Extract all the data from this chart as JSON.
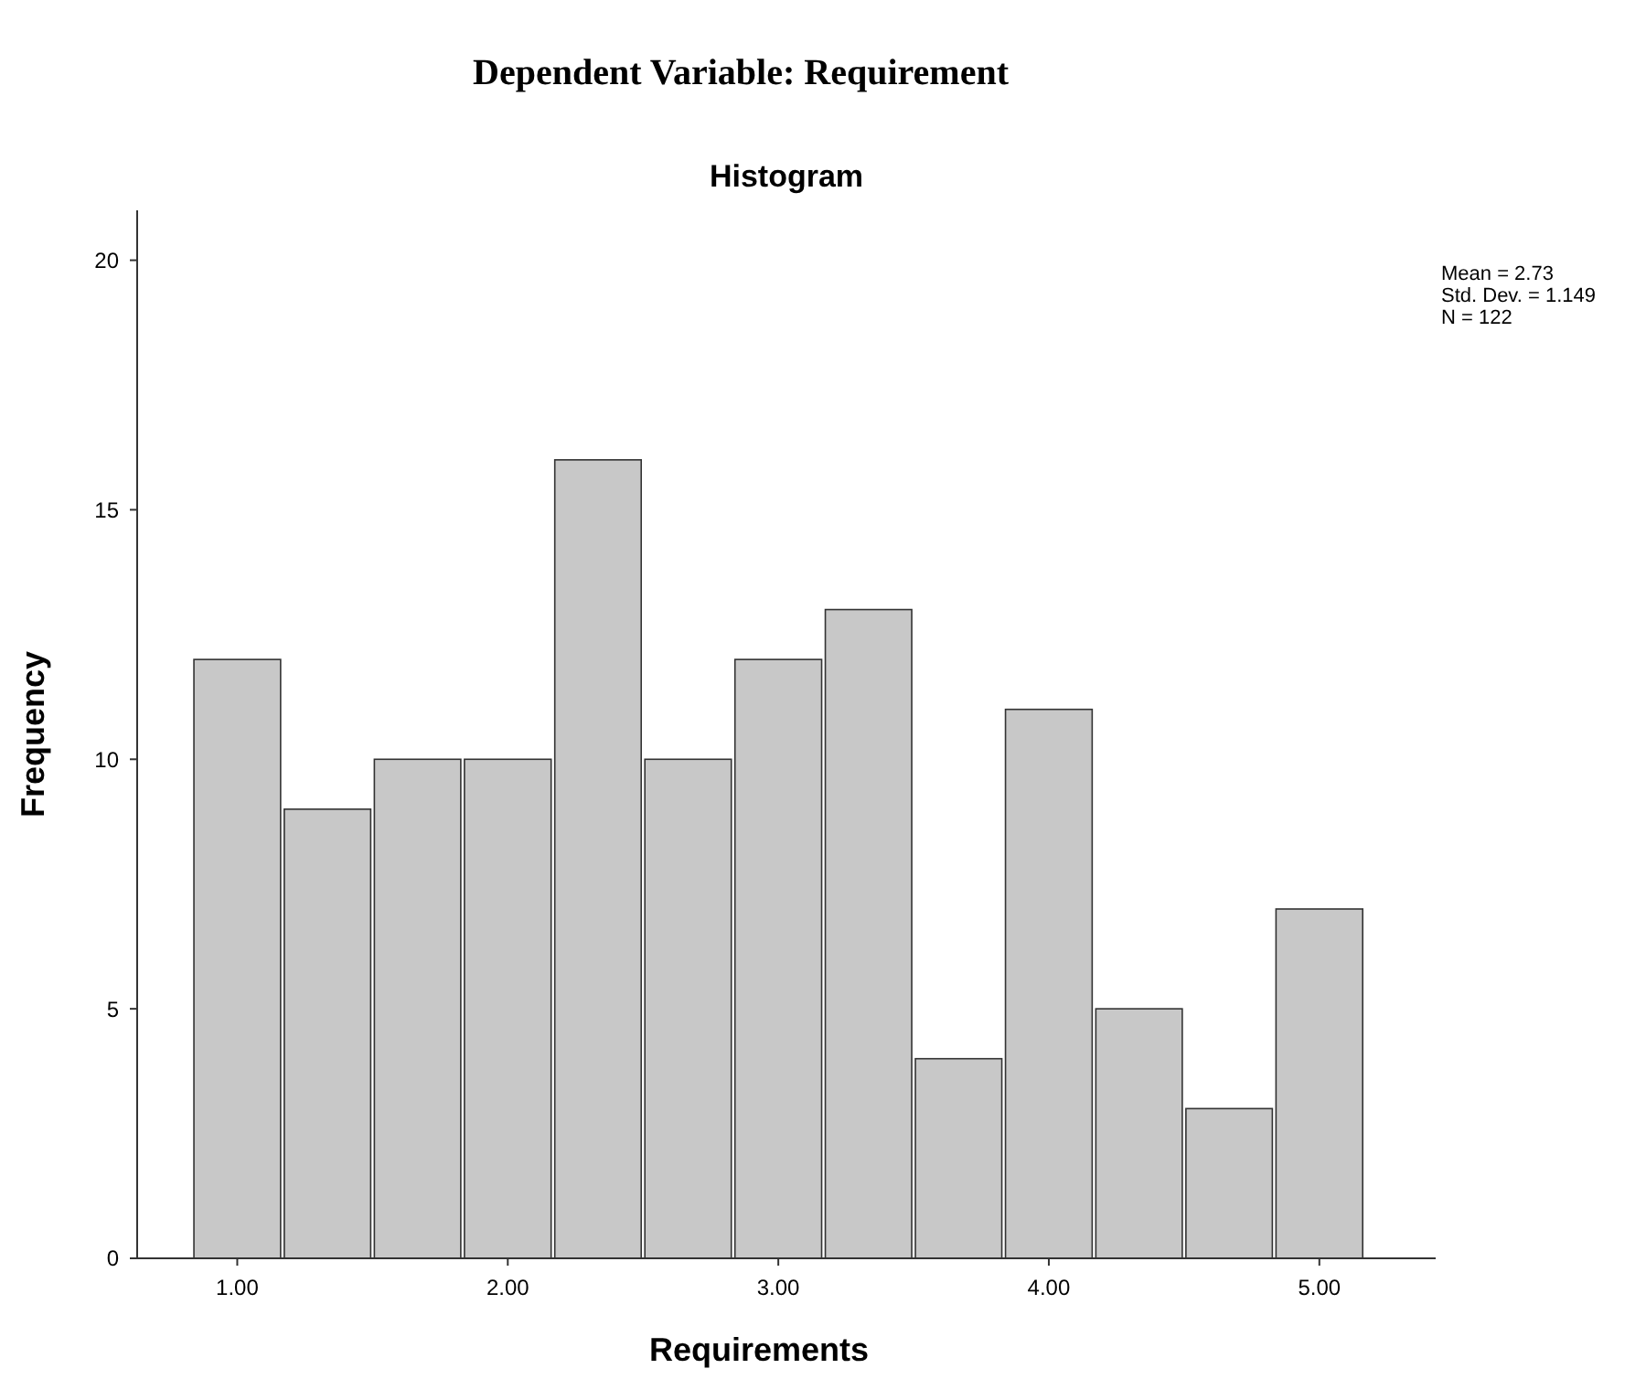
{
  "chart_data": {
    "type": "histogram",
    "title": "Dependent Variable: Requirement",
    "subtitle": "Histogram",
    "xlabel": "Requirements",
    "ylabel": "Frequency",
    "bins": [
      0.833,
      1.167,
      1.5,
      1.833,
      2.167,
      2.5,
      2.833,
      3.167,
      3.5,
      3.833,
      4.167,
      4.5,
      4.833,
      5.167
    ],
    "values": [
      12,
      9,
      10,
      10,
      16,
      10,
      12,
      13,
      4,
      11,
      5,
      3,
      7
    ],
    "color": "#c8c8c8",
    "xlim": [
      0.63,
      5.43
    ],
    "xticks": [
      {
        "value": 1,
        "label": "1.00"
      },
      {
        "value": 2,
        "label": "2.00"
      },
      {
        "value": 3,
        "label": "3.00"
      },
      {
        "value": 4,
        "label": "4.00"
      },
      {
        "value": 5,
        "label": "5.00"
      }
    ],
    "ylim": [
      0,
      21
    ],
    "yticks": [
      0,
      5,
      10,
      15,
      20
    ],
    "grid": false,
    "annotations": [
      "Mean = 2.73",
      "Std. Dev. = 1.149",
      "N = 122"
    ]
  }
}
